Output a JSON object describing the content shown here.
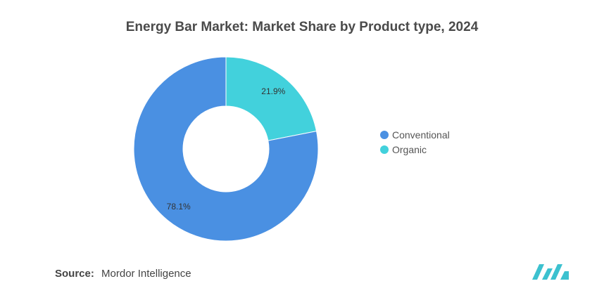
{
  "chart_data": {
    "type": "pie",
    "title": "Energy Bar Market: Market Share by Product type, 2024",
    "slices": [
      {
        "label": "Conventional",
        "value": 78.1,
        "display": "78.1%",
        "color": "#4a90e2"
      },
      {
        "label": "Organic",
        "value": 21.9,
        "display": "21.9%",
        "color": "#42d1dc"
      }
    ],
    "donut": true,
    "legend_position": "right"
  },
  "footer": {
    "source_label": "Source:",
    "source_text": "Mordor Intelligence"
  },
  "logo": {
    "icon": "mordor-intelligence-logo-icon",
    "color": "#3cc1cf"
  }
}
